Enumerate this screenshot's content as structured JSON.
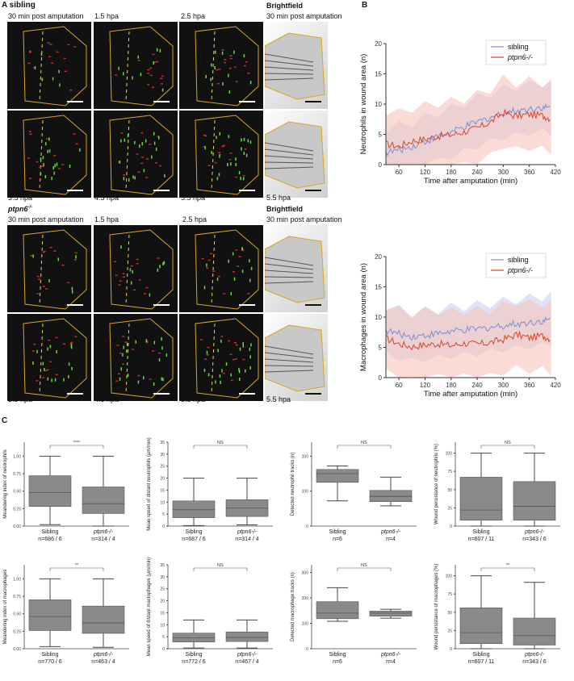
{
  "panelA": {
    "letter": "A",
    "sibling_title": "sibling",
    "brightfield": "Brightfield",
    "top_labels": [
      "30 min post amputation",
      "1.5 hpa",
      "2.5 hpa",
      "30 min post amputation"
    ],
    "bottom_labels": [
      "3.5 hpa",
      "4.5 hpa",
      "5.5 hpa",
      "5.5 hpa"
    ],
    "mutant_title_base": "ptpn6",
    "mutant_title_sup": "-/-",
    "mutant_top_labels": [
      "30 min post amputation",
      "1.5 hpa",
      "2.5 hpa",
      "30 min post amputation"
    ],
    "mutant_bottom_labels": [
      "3.5 hpa",
      "4.5 hpa",
      "5.5 hpa",
      "5.5 hpa"
    ]
  },
  "panelB": {
    "letter": "B",
    "colors": {
      "sibling": "#7b8fd6",
      "mutant": "#d9452b",
      "sibling_band": "#c9d0ef",
      "mutant_band": "#f6c3bb"
    }
  },
  "panelC": {
    "letter": "C"
  },
  "chart_data": [
    {
      "type": "line",
      "ylabel": "Neutrophils in wound area (n)",
      "xlabel": "Time after amputation (min)",
      "xticks": [
        60,
        120,
        180,
        240,
        300,
        360,
        420
      ],
      "yticks": [
        0,
        5,
        10,
        15,
        20
      ],
      "xlim": [
        30,
        420
      ],
      "ylim": [
        0,
        20
      ],
      "series": [
        {
          "name": "sibling",
          "x": [
            30,
            60,
            90,
            120,
            150,
            180,
            210,
            240,
            270,
            300,
            330,
            360,
            390,
            410
          ],
          "values": [
            2.0,
            2.4,
            3.0,
            3.8,
            4.6,
            5.3,
            6.2,
            7.0,
            7.8,
            8.5,
            8.9,
            9.2,
            9.5,
            9.3
          ]
        },
        {
          "name": "ptpn6-/-",
          "x": [
            30,
            60,
            90,
            120,
            150,
            180,
            210,
            240,
            270,
            300,
            330,
            360,
            390,
            410
          ],
          "values": [
            3.4,
            3.0,
            3.9,
            4.2,
            4.7,
            4.9,
            5.4,
            6.0,
            7.0,
            8.6,
            8.0,
            8.3,
            8.1,
            7.6
          ]
        }
      ],
      "legend": [
        "sibling",
        "ptpn6-/-"
      ]
    },
    {
      "type": "line",
      "ylabel": "Macrophages in wound area (n)",
      "xlabel": "Time after amputation (min)",
      "xticks": [
        60,
        120,
        180,
        240,
        300,
        360,
        420
      ],
      "yticks": [
        0,
        5,
        10,
        15,
        20
      ],
      "xlim": [
        30,
        420
      ],
      "ylim": [
        0,
        20
      ],
      "series": [
        {
          "name": "sibling",
          "x": [
            30,
            60,
            90,
            120,
            150,
            180,
            210,
            240,
            270,
            300,
            330,
            360,
            390,
            410
          ],
          "values": [
            7.8,
            7.2,
            6.8,
            7.0,
            7.3,
            7.6,
            7.8,
            8.0,
            8.3,
            8.6,
            8.9,
            9.1,
            9.4,
            9.5
          ]
        },
        {
          "name": "ptpn6-/-",
          "x": [
            30,
            60,
            90,
            120,
            150,
            180,
            210,
            240,
            270,
            300,
            330,
            360,
            390,
            410
          ],
          "values": [
            6.5,
            5.6,
            5.1,
            5.4,
            5.6,
            5.3,
            5.7,
            5.5,
            5.8,
            6.3,
            7.1,
            6.6,
            6.9,
            6.4
          ]
        }
      ],
      "legend": [
        "sibling",
        "ptpn6-/-"
      ]
    },
    {
      "type": "box",
      "ylabel": "Meandering index of neutrophils",
      "yticks": [
        "0.00",
        "0.25",
        "0.50",
        "0.75",
        "1.00"
      ],
      "ylim": [
        0,
        1.2
      ],
      "categories": [
        "Sibling",
        "ptpn6-/-"
      ],
      "n": [
        "n=686 / 6",
        "n=314 / 4"
      ],
      "boxes": [
        {
          "whislo": 0.02,
          "q1": 0.28,
          "med": 0.48,
          "q3": 0.72,
          "whishi": 1.0
        },
        {
          "whislo": 0.0,
          "q1": 0.18,
          "med": 0.32,
          "q3": 0.56,
          "whishi": 1.0
        }
      ],
      "signif": "****"
    },
    {
      "type": "box",
      "ylabel": "Mean speed of distant neutrophils (μm/min)",
      "yticks": [
        "0",
        "5",
        "10",
        "15",
        "20",
        "25",
        "30",
        "35"
      ],
      "ylim": [
        0,
        35
      ],
      "categories": [
        "Sibling",
        "ptpn6-/-"
      ],
      "n": [
        "n=687 / 6",
        "n=314 / 4"
      ],
      "boxes": [
        {
          "whislo": 0.2,
          "q1": 3.5,
          "med": 6.8,
          "q3": 10.5,
          "whishi": 20
        },
        {
          "whislo": 0.5,
          "q1": 4,
          "med": 7.5,
          "q3": 11,
          "whishi": 20
        }
      ],
      "signif": "NS"
    },
    {
      "type": "box",
      "ylabel": "Detected neutrophil tracks (n)",
      "yticks": [
        "0",
        "100",
        "200"
      ],
      "ylim": [
        0,
        240
      ],
      "categories": [
        "Sibling",
        "ptpn6-/-"
      ],
      "n": [
        "n=6",
        "n=4"
      ],
      "boxes": [
        {
          "whislo": 72,
          "q1": 125,
          "med": 150,
          "q3": 162,
          "whishi": 172
        },
        {
          "whislo": 58,
          "q1": 70,
          "med": 85,
          "q3": 102,
          "whishi": 140
        }
      ],
      "signif": "NS"
    },
    {
      "type": "box",
      "ylabel": "Wound persistance of neutrophils (%)",
      "yticks": [
        "0",
        "25",
        "50",
        "75",
        "100"
      ],
      "ylim": [
        0,
        115
      ],
      "categories": [
        "Sibling",
        "ptpn6-/-"
      ],
      "n": [
        "n=607 / 11",
        "n=343 / 6"
      ],
      "boxes": [
        {
          "whislo": 0,
          "q1": 8,
          "med": 22,
          "q3": 67,
          "whishi": 100
        },
        {
          "whislo": 0,
          "q1": 8,
          "med": 27,
          "q3": 61,
          "whishi": 100
        }
      ],
      "signif": "NS"
    },
    {
      "type": "box",
      "ylabel": "Meandering index of macrophages",
      "yticks": [
        "0.00",
        "0.25",
        "0.50",
        "0.75",
        "1.00"
      ],
      "ylim": [
        0,
        1.2
      ],
      "categories": [
        "Sibling",
        "ptpn6-/-"
      ],
      "n": [
        "n=770 / 6",
        "n=463 / 4"
      ],
      "boxes": [
        {
          "whislo": 0.03,
          "q1": 0.26,
          "med": 0.46,
          "q3": 0.7,
          "whishi": 1.0
        },
        {
          "whislo": 0.02,
          "q1": 0.22,
          "med": 0.37,
          "q3": 0.61,
          "whishi": 1.0
        }
      ],
      "signif": "**"
    },
    {
      "type": "box",
      "ylabel": "Mean speed of distant macrophages (μm/min)",
      "yticks": [
        "0",
        "5",
        "10",
        "15",
        "20",
        "25",
        "30",
        "35"
      ],
      "ylim": [
        0,
        35
      ],
      "categories": [
        "Sibling",
        "ptpn6-/-"
      ],
      "n": [
        "n=772 / 6",
        "n=467 / 4"
      ],
      "boxes": [
        {
          "whislo": 0.3,
          "q1": 2.8,
          "med": 4.5,
          "q3": 6.5,
          "whishi": 12
        },
        {
          "whislo": 0.3,
          "q1": 3,
          "med": 4.7,
          "q3": 7,
          "whishi": 12
        }
      ],
      "signif": "NS"
    },
    {
      "type": "box",
      "ylabel": "Detected macrophage tracks (n)",
      "yticks": [
        "0",
        "100",
        "200",
        "300"
      ],
      "ylim": [
        0,
        330
      ],
      "categories": [
        "Sibling",
        "ptpn6-/-"
      ],
      "n": [
        "n=6",
        "n=4"
      ],
      "boxes": [
        {
          "whislo": 108,
          "q1": 118,
          "med": 140,
          "q3": 185,
          "whishi": 240
        },
        {
          "whislo": 120,
          "q1": 128,
          "med": 140,
          "q3": 148,
          "whishi": 155
        }
      ],
      "signif": "NS"
    },
    {
      "type": "box",
      "ylabel": "Wound persistance of macrophages (%)",
      "yticks": [
        "0",
        "25",
        "50",
        "75",
        "100"
      ],
      "ylim": [
        0,
        115
      ],
      "categories": [
        "Sibling",
        "ptpn6-/-"
      ],
      "n": [
        "n=607 / 11",
        "n=343 / 6"
      ],
      "boxes": [
        {
          "whislo": 0,
          "q1": 7,
          "med": 22,
          "q3": 56,
          "whishi": 100
        },
        {
          "whislo": 0,
          "q1": 5,
          "med": 18,
          "q3": 42,
          "whishi": 91
        }
      ],
      "signif": "**"
    }
  ]
}
